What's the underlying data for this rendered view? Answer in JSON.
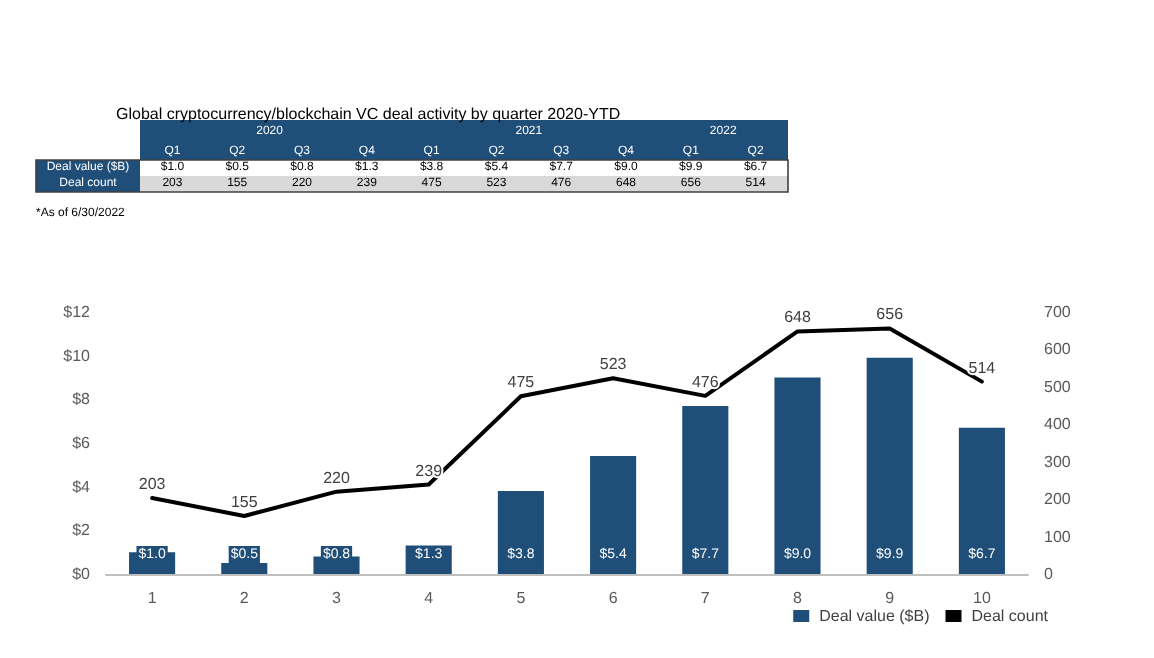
{
  "chart_data": {
    "type": "bar",
    "title": "Global cryptocurrency/blockchain VC deal activity by quarter 2020-YTD",
    "categories": [
      "1",
      "2",
      "3",
      "4",
      "5",
      "6",
      "7",
      "8",
      "9",
      "10"
    ],
    "series": [
      {
        "name": "Deal value ($B)",
        "color": "#1f4e79",
        "values": [
          1.0,
          0.5,
          0.8,
          1.3,
          3.8,
          5.4,
          7.7,
          9.0,
          9.9,
          6.7
        ],
        "value_labels": [
          "$1.0",
          "$0.5",
          "$0.8",
          "$1.3",
          "$3.8",
          "$5.4",
          "$7.7",
          "$9.0",
          "$9.9",
          "$6.7"
        ]
      },
      {
        "name": "Deal count",
        "type": "line",
        "axis": "y2",
        "color": "#000000",
        "values": [
          203,
          155,
          220,
          239,
          475,
          523,
          476,
          648,
          656,
          514
        ],
        "value_labels": [
          "203",
          "155",
          "220",
          "239",
          "475",
          "523",
          "476",
          "648",
          "656",
          "514"
        ]
      }
    ],
    "ylim": [
      0,
      12
    ],
    "yticks": [
      {
        "value": 0,
        "label": "$0"
      },
      {
        "value": 2,
        "label": "$2"
      },
      {
        "value": 4,
        "label": "$4"
      },
      {
        "value": 6,
        "label": "$6"
      },
      {
        "value": 8,
        "label": "$8"
      },
      {
        "value": 10,
        "label": "$10"
      },
      {
        "value": 12,
        "label": "$12"
      }
    ],
    "y2lim": [
      0,
      700
    ],
    "y2ticks": [
      0,
      100,
      200,
      300,
      400,
      500,
      600,
      700
    ],
    "marker": "none",
    "line_style": "solid",
    "grid": false,
    "legend": "bottom right",
    "annotations": [
      "2020",
      "2021",
      "2022",
      "Q1",
      "Q2",
      "Q3",
      "Q4",
      "Q1",
      "Q2",
      "Q3",
      "Q4",
      "Q1",
      "Q2",
      "*As of 6/30/2022"
    ]
  }
}
